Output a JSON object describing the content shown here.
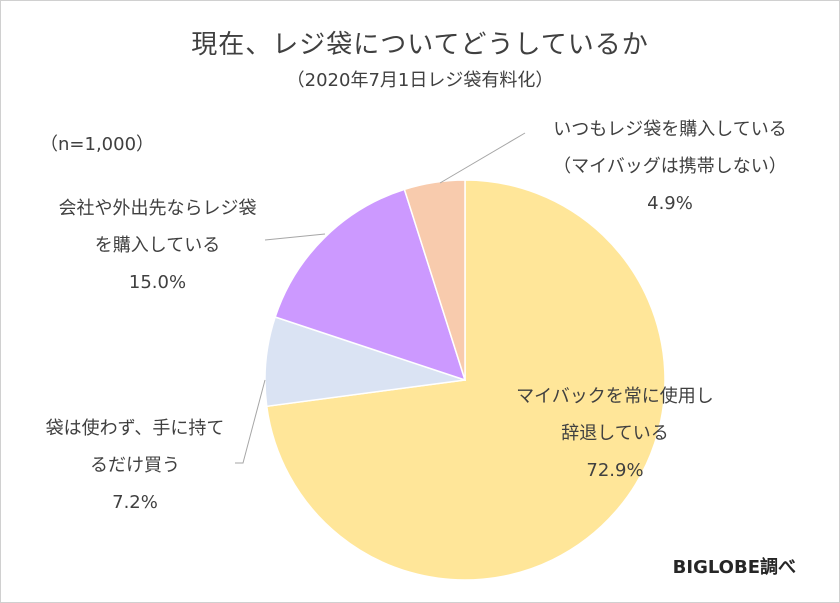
{
  "title": "現在、レジ袋についてどうしているか",
  "subtitle": "（2020年7月1日レジ袋有料化）",
  "sample_note": "（n=1,000）",
  "credit": "BIGLOBE調べ",
  "colors": {
    "gold": "#FFE699",
    "blue_gray": "#DAE3F3",
    "purple": "#CC99FF",
    "peach": "#F8CBAD",
    "leader": "#A6A6A6"
  },
  "chart_data": {
    "type": "pie",
    "title": "現在、レジ袋についてどうしているか",
    "subtitle": "（2020年7月1日レジ袋有料化）",
    "slices": [
      {
        "label_lines": [
          "マイバックを常に使用し",
          "辞退している"
        ],
        "value": 72.9,
        "value_text": "72.9%",
        "color": "#FFE699"
      },
      {
        "label_lines": [
          "袋は使わず、手に持て",
          "るだけ買う"
        ],
        "value": 7.2,
        "value_text": "7.2%",
        "color": "#DAE3F3"
      },
      {
        "label_lines": [
          "会社や外出先ならレジ袋",
          "を購入している"
        ],
        "value": 15.0,
        "value_text": "15.0%",
        "color": "#CC99FF"
      },
      {
        "label_lines": [
          "いつもレジ袋を購入している",
          "（マイバッグは携帯しない）"
        ],
        "value": 4.9,
        "value_text": "4.9%",
        "color": "#F8CBAD"
      }
    ]
  }
}
